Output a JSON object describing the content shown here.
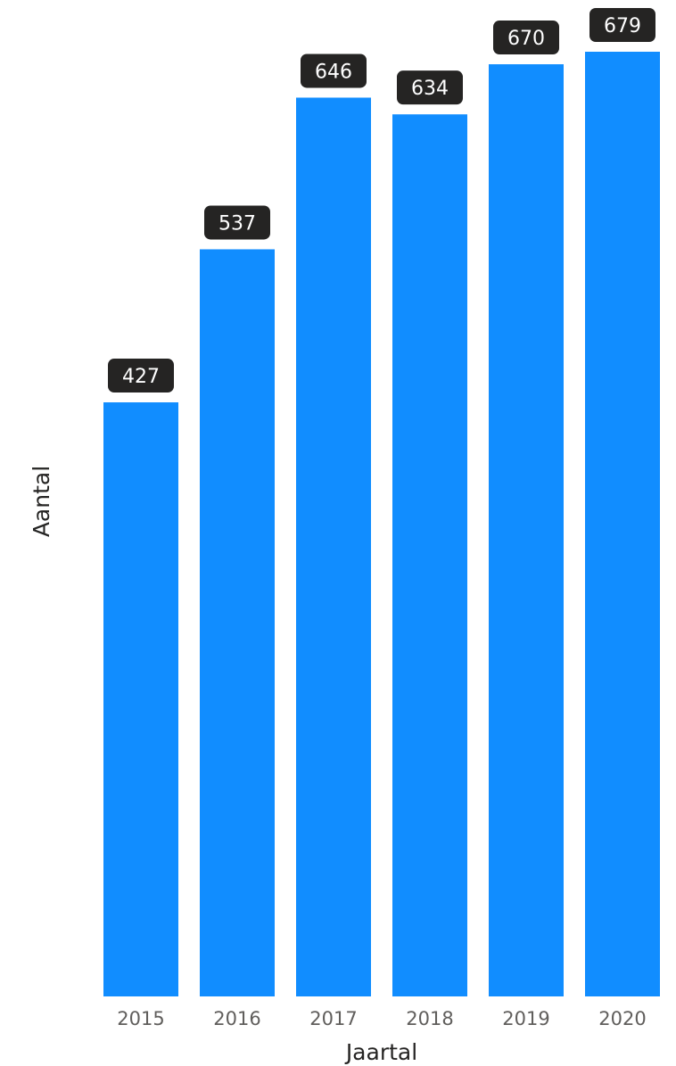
{
  "chart_data": {
    "type": "bar",
    "title": "",
    "xlabel": "Jaartal",
    "ylabel": "Aantal",
    "categories": [
      "2015",
      "2016",
      "2017",
      "2018",
      "2019",
      "2020"
    ],
    "values": [
      427,
      537,
      646,
      634,
      670,
      679
    ],
    "ylim": [
      0,
      679
    ],
    "grid": false,
    "legend": "none",
    "data_labels": true,
    "colors": {
      "bar": "#118dff",
      "label_background": "#252423",
      "label_text": "#ffffff",
      "tick_text": "#605e5c",
      "axis_title": "#252423"
    }
  }
}
